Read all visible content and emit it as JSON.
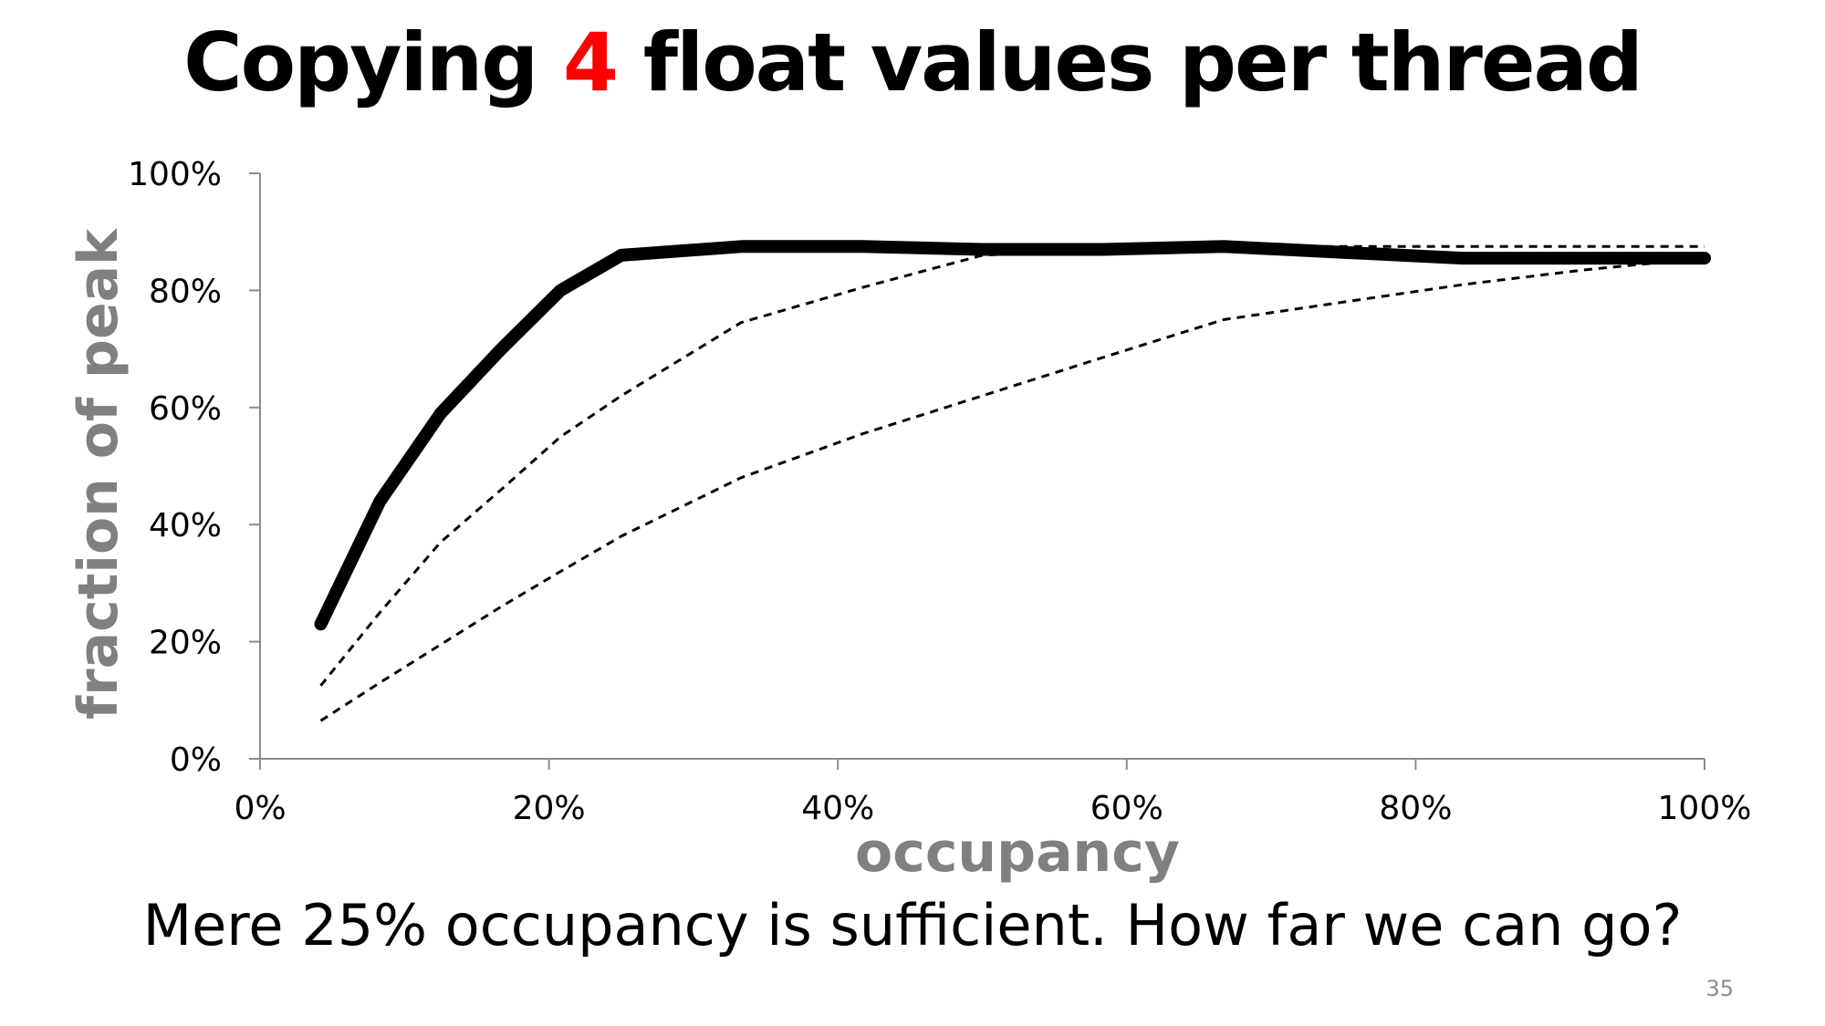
{
  "slide": {
    "title_before": "Copying ",
    "title_highlight": "4",
    "title_after": " float values per thread",
    "caption": "Mere 25% occupancy is sufficient. How far we can go?",
    "page_number": "35",
    "accent_color": "#ff0000"
  },
  "chart_data": {
    "type": "line",
    "title": "",
    "xlabel": "occupancy",
    "ylabel": "fraction of peak",
    "xlim": [
      0,
      100
    ],
    "ylim": [
      0,
      100
    ],
    "x_ticks": [
      "0%",
      "20%",
      "40%",
      "60%",
      "80%",
      "100%"
    ],
    "y_ticks": [
      "0%",
      "20%",
      "40%",
      "60%",
      "80%",
      "100%"
    ],
    "grid": false,
    "legend": "none",
    "axis_label_color": "#808080",
    "series": [
      {
        "style": "solid-thick",
        "color": "#000000",
        "points": [
          [
            4.2,
            23
          ],
          [
            8.3,
            44
          ],
          [
            12.5,
            59
          ],
          [
            16.7,
            70
          ],
          [
            20.8,
            80
          ],
          [
            25,
            86
          ],
          [
            33.3,
            87.5
          ],
          [
            41.7,
            87.5
          ],
          [
            50,
            87
          ],
          [
            58.3,
            87
          ],
          [
            66.7,
            87.5
          ],
          [
            75,
            86.5
          ],
          [
            83.3,
            85.5
          ],
          [
            91.7,
            85.5
          ],
          [
            100,
            85.5
          ]
        ]
      },
      {
        "style": "dashed",
        "color": "#000000",
        "points": [
          [
            4.2,
            12.5
          ],
          [
            8.3,
            25
          ],
          [
            12.5,
            37
          ],
          [
            16.7,
            46
          ],
          [
            20.8,
            55
          ],
          [
            25,
            62
          ],
          [
            33.3,
            74.5
          ],
          [
            41.7,
            80.5
          ],
          [
            50,
            86
          ],
          [
            58.3,
            87
          ],
          [
            66.7,
            87.5
          ],
          [
            75,
            87.5
          ],
          [
            83.3,
            87.5
          ],
          [
            91.7,
            87.5
          ],
          [
            100,
            87.5
          ]
        ]
      },
      {
        "style": "dashed",
        "color": "#000000",
        "points": [
          [
            4.2,
            6.5
          ],
          [
            8.3,
            13
          ],
          [
            12.5,
            19.5
          ],
          [
            16.7,
            26
          ],
          [
            20.8,
            32
          ],
          [
            25,
            38
          ],
          [
            33.3,
            48
          ],
          [
            41.7,
            55.5
          ],
          [
            50,
            62
          ],
          [
            58.3,
            68.5
          ],
          [
            66.7,
            75
          ],
          [
            75,
            78
          ],
          [
            83.3,
            81
          ],
          [
            91.7,
            83.5
          ],
          [
            100,
            85.5
          ]
        ]
      }
    ]
  }
}
